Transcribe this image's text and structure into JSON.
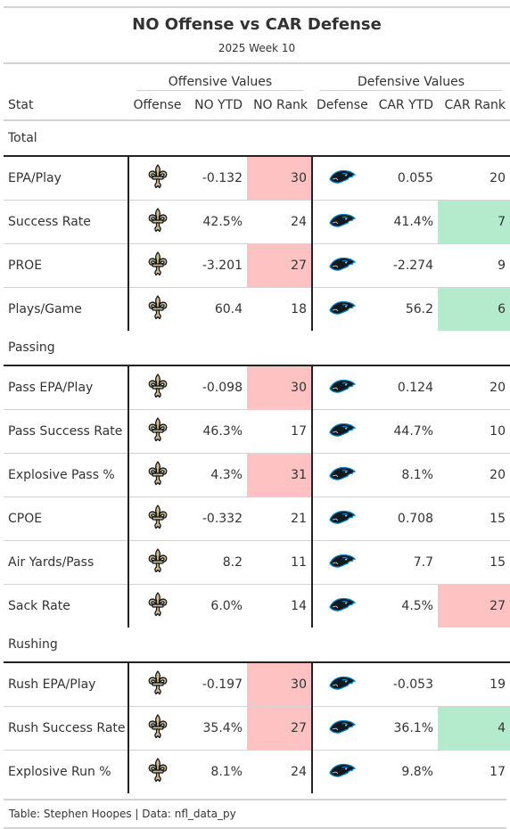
{
  "header": {
    "title": "NO Offense vs CAR Defense",
    "subtitle": "2025 Week 10"
  },
  "spanners": {
    "offensive": "Offensive Values",
    "defensive": "Defensive Values"
  },
  "columns": {
    "stat": "Stat",
    "offense": "Offense",
    "off_ytd": "NO YTD",
    "off_rank": "NO Rank",
    "defense": "Defense",
    "def_ytd": "CAR YTD",
    "def_rank": "CAR Rank"
  },
  "logos": {
    "offense": "saints-fleur-de-lis-icon",
    "defense": "panthers-head-icon"
  },
  "colors": {
    "bad": "#ffc2c2",
    "good": "#b4ebcc"
  },
  "groups": [
    {
      "name": "Total",
      "rows": [
        {
          "stat": "EPA/Play",
          "off_ytd": "-0.132",
          "off_rank": "30",
          "off_hl": "bad",
          "def_ytd": "0.055",
          "def_rank": "20",
          "def_hl": ""
        },
        {
          "stat": "Success Rate",
          "off_ytd": "42.5%",
          "off_rank": "24",
          "off_hl": "",
          "def_ytd": "41.4%",
          "def_rank": "7",
          "def_hl": "good"
        },
        {
          "stat": "PROE",
          "off_ytd": "-3.201",
          "off_rank": "27",
          "off_hl": "bad",
          "def_ytd": "-2.274",
          "def_rank": "9",
          "def_hl": ""
        },
        {
          "stat": "Plays/Game",
          "off_ytd": "60.4",
          "off_rank": "18",
          "off_hl": "",
          "def_ytd": "56.2",
          "def_rank": "6",
          "def_hl": "good"
        }
      ]
    },
    {
      "name": "Passing",
      "rows": [
        {
          "stat": "Pass EPA/Play",
          "off_ytd": "-0.098",
          "off_rank": "30",
          "off_hl": "bad",
          "def_ytd": "0.124",
          "def_rank": "20",
          "def_hl": ""
        },
        {
          "stat": "Pass Success Rate",
          "off_ytd": "46.3%",
          "off_rank": "17",
          "off_hl": "",
          "def_ytd": "44.7%",
          "def_rank": "10",
          "def_hl": ""
        },
        {
          "stat": "Explosive Pass %",
          "off_ytd": "4.3%",
          "off_rank": "31",
          "off_hl": "bad",
          "def_ytd": "8.1%",
          "def_rank": "20",
          "def_hl": ""
        },
        {
          "stat": "CPOE",
          "off_ytd": "-0.332",
          "off_rank": "21",
          "off_hl": "",
          "def_ytd": "0.708",
          "def_rank": "15",
          "def_hl": ""
        },
        {
          "stat": "Air Yards/Pass",
          "off_ytd": "8.2",
          "off_rank": "11",
          "off_hl": "",
          "def_ytd": "7.7",
          "def_rank": "15",
          "def_hl": ""
        },
        {
          "stat": "Sack Rate",
          "off_ytd": "6.0%",
          "off_rank": "14",
          "off_hl": "",
          "def_ytd": "4.5%",
          "def_rank": "27",
          "def_hl": "bad"
        }
      ]
    },
    {
      "name": "Rushing",
      "rows": [
        {
          "stat": "Rush EPA/Play",
          "off_ytd": "-0.197",
          "off_rank": "30",
          "off_hl": "bad",
          "def_ytd": "-0.053",
          "def_rank": "19",
          "def_hl": ""
        },
        {
          "stat": "Rush Success Rate",
          "off_ytd": "35.4%",
          "off_rank": "27",
          "off_hl": "bad",
          "def_ytd": "36.1%",
          "def_rank": "4",
          "def_hl": "good"
        },
        {
          "stat": "Explosive Run %",
          "off_ytd": "8.1%",
          "off_rank": "24",
          "off_hl": "",
          "def_ytd": "9.8%",
          "def_rank": "17",
          "def_hl": ""
        }
      ]
    }
  ],
  "footer": {
    "source": "Table: Stephen Hoopes | Data: nfl_data_py"
  }
}
